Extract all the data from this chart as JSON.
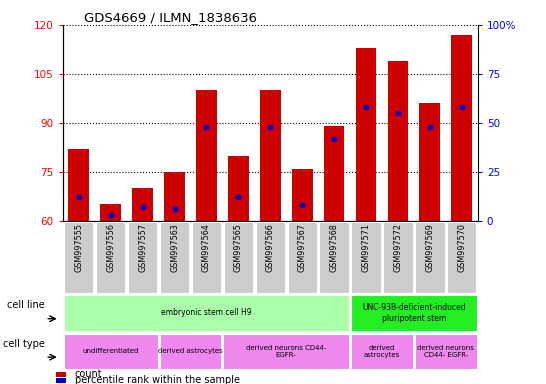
{
  "title": "GDS4669 / ILMN_1838636",
  "samples": [
    "GSM997555",
    "GSM997556",
    "GSM997557",
    "GSM997563",
    "GSM997564",
    "GSM997565",
    "GSM997566",
    "GSM997567",
    "GSM997568",
    "GSM997571",
    "GSM997572",
    "GSM997569",
    "GSM997570"
  ],
  "count_values": [
    82,
    65,
    70,
    75,
    100,
    80,
    100,
    76,
    89,
    113,
    109,
    96,
    117
  ],
  "percentile_values": [
    12,
    3,
    7,
    6,
    48,
    12,
    48,
    8,
    42,
    58,
    55,
    48,
    58
  ],
  "ylim_left": [
    60,
    120
  ],
  "ylim_right": [
    0,
    100
  ],
  "yticks_left": [
    60,
    75,
    90,
    105,
    120
  ],
  "yticks_right": [
    0,
    25,
    50,
    75,
    100
  ],
  "bar_color": "#cc0000",
  "dot_color": "#0000cc",
  "bg_color": "#cccccc",
  "cell_line_groups": [
    {
      "label": "embryonic stem cell H9",
      "start": 0,
      "end": 9,
      "color": "#aaffaa"
    },
    {
      "label": "UNC-93B-deficient-induced\npluripotent stem",
      "start": 9,
      "end": 13,
      "color": "#22ee22"
    }
  ],
  "cell_type_groups": [
    {
      "label": "undifferentiated",
      "start": 0,
      "end": 3,
      "color": "#ee88ee"
    },
    {
      "label": "derived astrocytes",
      "start": 3,
      "end": 5,
      "color": "#ee88ee"
    },
    {
      "label": "derived neurons CD44-\nEGFR-",
      "start": 5,
      "end": 9,
      "color": "#ee88ee"
    },
    {
      "label": "derived\nastrocytes",
      "start": 9,
      "end": 11,
      "color": "#ee88ee"
    },
    {
      "label": "derived neurons\nCD44- EGFR-",
      "start": 11,
      "end": 13,
      "color": "#ee88ee"
    }
  ],
  "legend_count_color": "#cc0000",
  "legend_pct_color": "#0000cc"
}
